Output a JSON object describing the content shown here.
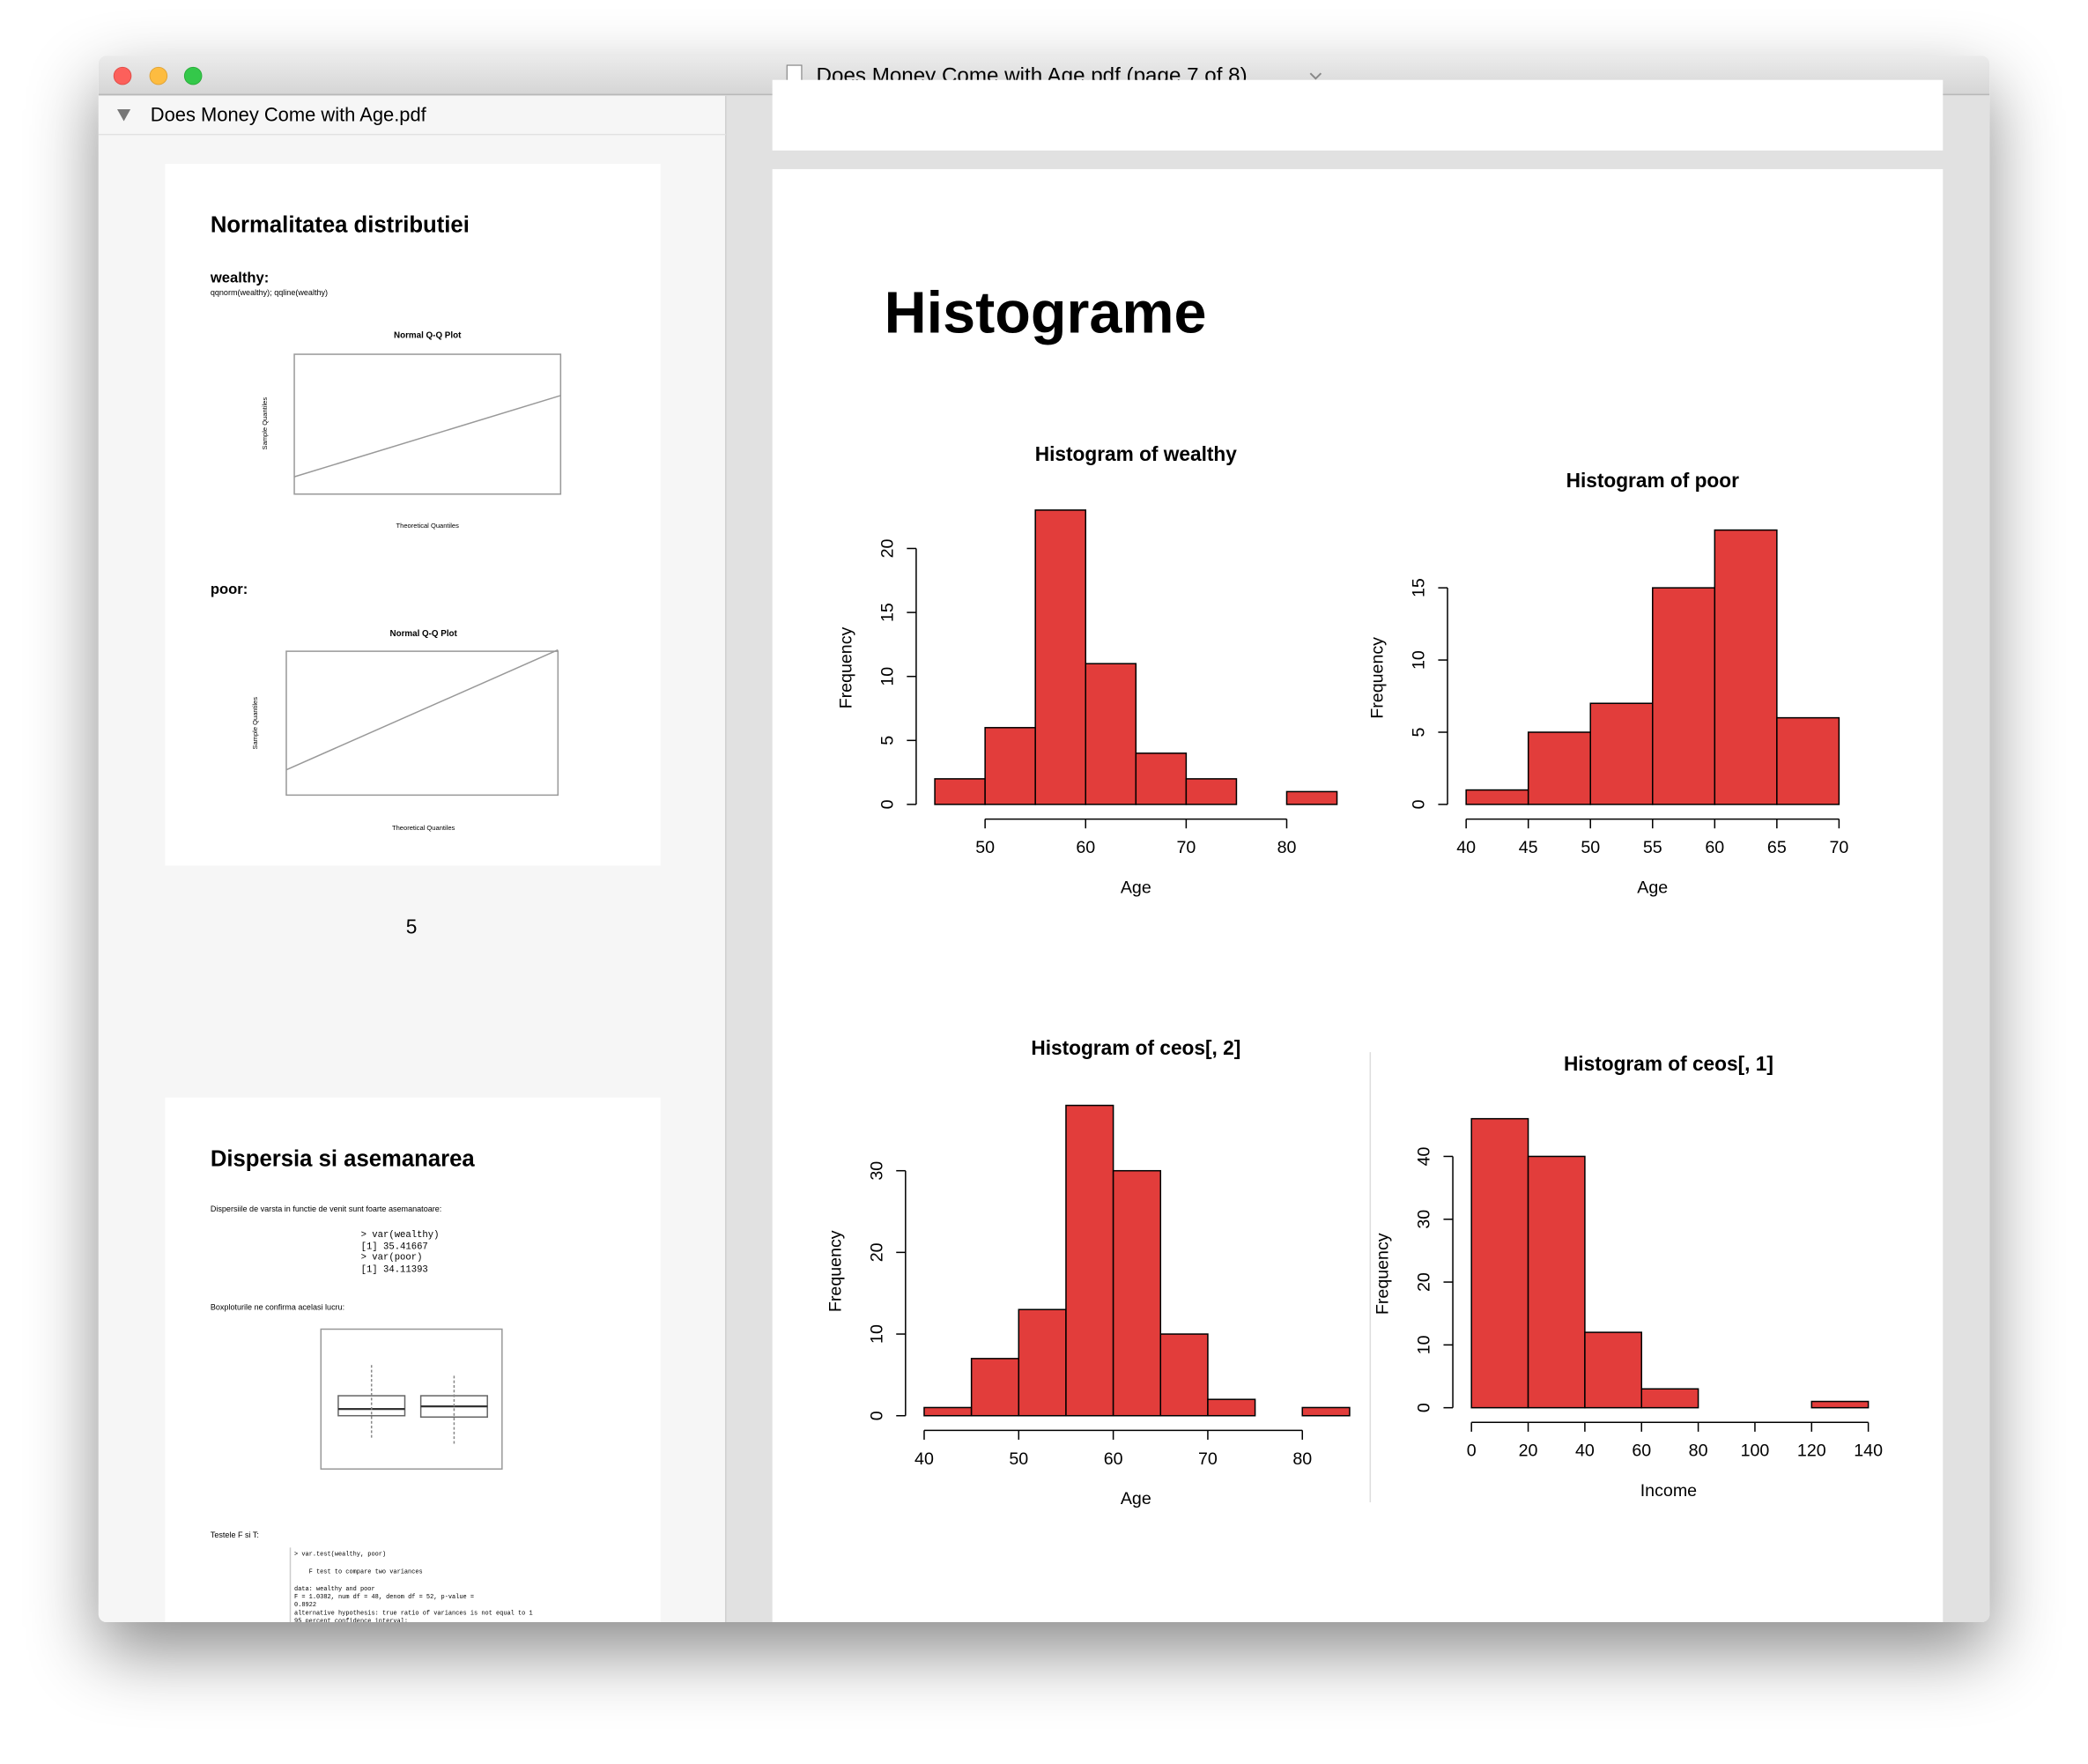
{
  "window": {
    "title": "Does Money Come with Age.pdf (page 7 of 8)"
  },
  "sidebar": {
    "document": "Does Money Come with Age.pdf",
    "thumbnails": [
      {
        "heading": "Normalitatea distributiei",
        "sections": [
          {
            "label": "wealthy:",
            "code": "qqnorm(wealthy); qqline(wealthy)",
            "plot_title": "Normal Q-Q Plot",
            "ylabel": "Sample Quantiles",
            "xlabel": "Theoretical Quantiles"
          },
          {
            "label": "poor:",
            "plot_title": "Normal Q-Q Plot",
            "ylabel": "Sample Quantiles",
            "xlabel": "Theoretical Quantiles"
          }
        ],
        "page_number": "5"
      },
      {
        "heading": "Dispersia si asemanarea",
        "text": "Dispersiile de varsta in functie de venit sunt foarte asemanatoare:",
        "console": [
          "> var(wealthy)",
          "[1] 35.41667",
          "> var(poor)",
          "[1] 34.11393"
        ],
        "text2": "Boxploturile ne confirma acelasi lucru:",
        "text3": "Testele F si T:",
        "console2": [
          "> var.test(wealthy, poor)",
          "F test to compare two variances",
          "data:  wealthy and poor",
          "F = 1.0382, num df = 48, denom df = 52, p-value =",
          "0.8922",
          "alternative hypothesis: true ratio of variances is not equal to 1",
          "95 percent confidence interval:"
        ]
      }
    ]
  },
  "page": {
    "heading": "Histograme"
  },
  "chart_data": [
    {
      "type": "histogram",
      "title": "Histogram of wealthy",
      "xlabel": "Age",
      "ylabel": "Frequency",
      "bins": [
        45,
        50,
        55,
        60,
        65,
        70,
        75,
        80,
        85
      ],
      "values": [
        2,
        6,
        23,
        11,
        4,
        2,
        0,
        1
      ],
      "color": "#e23d3b",
      "xlim": [
        45,
        85
      ],
      "ylim": [
        0,
        23
      ],
      "xticks": [
        50,
        60,
        70,
        80
      ],
      "yticks": [
        0,
        5,
        10,
        15,
        20
      ]
    },
    {
      "type": "histogram",
      "title": "Histogram of poor",
      "xlabel": "Age",
      "ylabel": "Frequency",
      "bins": [
        40,
        45,
        50,
        55,
        60,
        65,
        70
      ],
      "values": [
        1,
        5,
        7,
        15,
        19,
        6
      ],
      "color": "#e23d3b",
      "xlim": [
        40,
        70
      ],
      "ylim": [
        0,
        19
      ],
      "xticks": [
        40,
        45,
        50,
        55,
        60,
        65,
        70
      ],
      "yticks": [
        0,
        5,
        10,
        15
      ]
    },
    {
      "type": "histogram",
      "title": "Histogram of ceos[, 2]",
      "xlabel": "Age",
      "ylabel": "Frequency",
      "bins": [
        40,
        45,
        50,
        55,
        60,
        65,
        70,
        75,
        80,
        85
      ],
      "values": [
        1,
        7,
        13,
        38,
        30,
        10,
        2,
        0,
        1
      ],
      "color": "#e23d3b",
      "xlim": [
        40,
        85
      ],
      "ylim": [
        0,
        38
      ],
      "xticks": [
        40,
        50,
        60,
        70,
        80
      ],
      "yticks": [
        0,
        10,
        20,
        30
      ]
    },
    {
      "type": "histogram",
      "title": "Histogram of ceos[, 1]",
      "xlabel": "Income",
      "ylabel": "Frequency",
      "bins": [
        0,
        20,
        40,
        60,
        80,
        100,
        120,
        140
      ],
      "values": [
        46,
        40,
        12,
        3,
        0,
        0,
        1
      ],
      "color": "#e23d3b",
      "xlim": [
        0,
        140
      ],
      "ylim": [
        0,
        46
      ],
      "xticks": [
        0,
        20,
        40,
        60,
        80,
        100,
        120,
        140
      ],
      "yticks": [
        0,
        10,
        20,
        30,
        40
      ]
    }
  ]
}
